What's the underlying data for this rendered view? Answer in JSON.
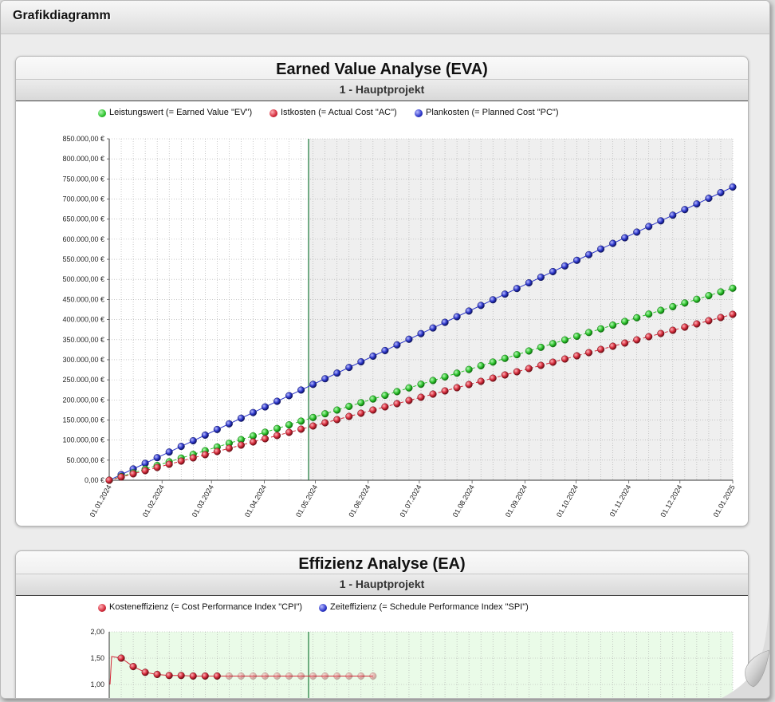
{
  "window": {
    "title": "Grafikdiagramm"
  },
  "eva": {
    "title": "Earned Value Analyse (EVA)",
    "subtitle": "1 - Hauptprojekt",
    "legend": [
      {
        "label": "Leistungswert (= Earned Value \"EV\")",
        "color": "#2ec42e"
      },
      {
        "label": "Istkosten (= Actual Cost \"AC\")",
        "color": "#d42a3a"
      },
      {
        "label": "Plankosten (= Planned Cost \"PC\")",
        "color": "#2b35c9"
      }
    ],
    "y_ticks": [
      "0,00 €",
      "50.000,00 €",
      "100.000,00 €",
      "150.000,00 €",
      "200.000,00 €",
      "250.000,00 €",
      "300.000,00 €",
      "350.000,00 €",
      "400.000,00 €",
      "450.000,00 €",
      "500.000,00 €",
      "550.000,00 €",
      "600.000,00 €",
      "650.000,00 €",
      "700.000,00 €",
      "750.000,00 €",
      "800.000,00 €",
      "850.000,00 €"
    ],
    "x_ticks": [
      "01.01.2024",
      "01.02.2024",
      "01.03.2024",
      "01.04.2024",
      "01.05.2024",
      "01.06.2024",
      "01.07.2024",
      "01.08.2024",
      "01.09.2024",
      "01.10.2024",
      "01.11.2024",
      "01.12.2024",
      "01.01.2025"
    ]
  },
  "ea": {
    "title": "Effizienz Analyse (EA)",
    "subtitle": "1 - Hauptprojekt",
    "legend": [
      {
        "label": "Kosteneffizienz (= Cost Performance Index \"CPI\")",
        "color": "#d42a3a"
      },
      {
        "label": "Zeiteffizienz (= Schedule Performance Index \"SPI\")",
        "color": "#2b35c9"
      }
    ],
    "y_ticks": [
      "1,00",
      "1,50",
      "2,00"
    ]
  },
  "chart_data": [
    {
      "type": "line",
      "title": "Earned Value Analyse (EVA)",
      "subtitle": "1 - Hauptprojekt",
      "xlabel": "",
      "ylabel": "",
      "x_range": [
        "01.01.2024",
        "01.01.2025"
      ],
      "ylim": [
        0,
        850000
      ],
      "grid": true,
      "legend_position": "top",
      "status_date": "~26.04.2024",
      "series": [
        {
          "name": "Plankosten (= Planned Cost \"PC\")",
          "start": 0,
          "end": 730000,
          "points": 53,
          "line": "solid"
        },
        {
          "name": "Leistungswert (= Earned Value \"EV\")",
          "start": 0,
          "end": 478000,
          "points": 53,
          "line": "dashed"
        },
        {
          "name": "Istkosten (= Actual Cost \"AC\")",
          "start": 0,
          "end": 413000,
          "points": 53,
          "line": "dashed"
        }
      ]
    },
    {
      "type": "line",
      "title": "Effizienz Analyse (EA)",
      "subtitle": "1 - Hauptprojekt",
      "ylim": [
        1.0,
        2.0
      ],
      "grid": true,
      "legend_position": "top",
      "series": [
        {
          "name": "Kosteneffizienz (= Cost Performance Index \"CPI\")",
          "visible_values": [
            1.5,
            1.34,
            1.23,
            1.19,
            1.17,
            1.17,
            1.16,
            1.16,
            1.16,
            1.16,
            1.16,
            1.16,
            1.16,
            1.16,
            1.16,
            1.16,
            1.16,
            1.16,
            1.16,
            1.16,
            1.16,
            1.16
          ]
        }
      ]
    }
  ]
}
